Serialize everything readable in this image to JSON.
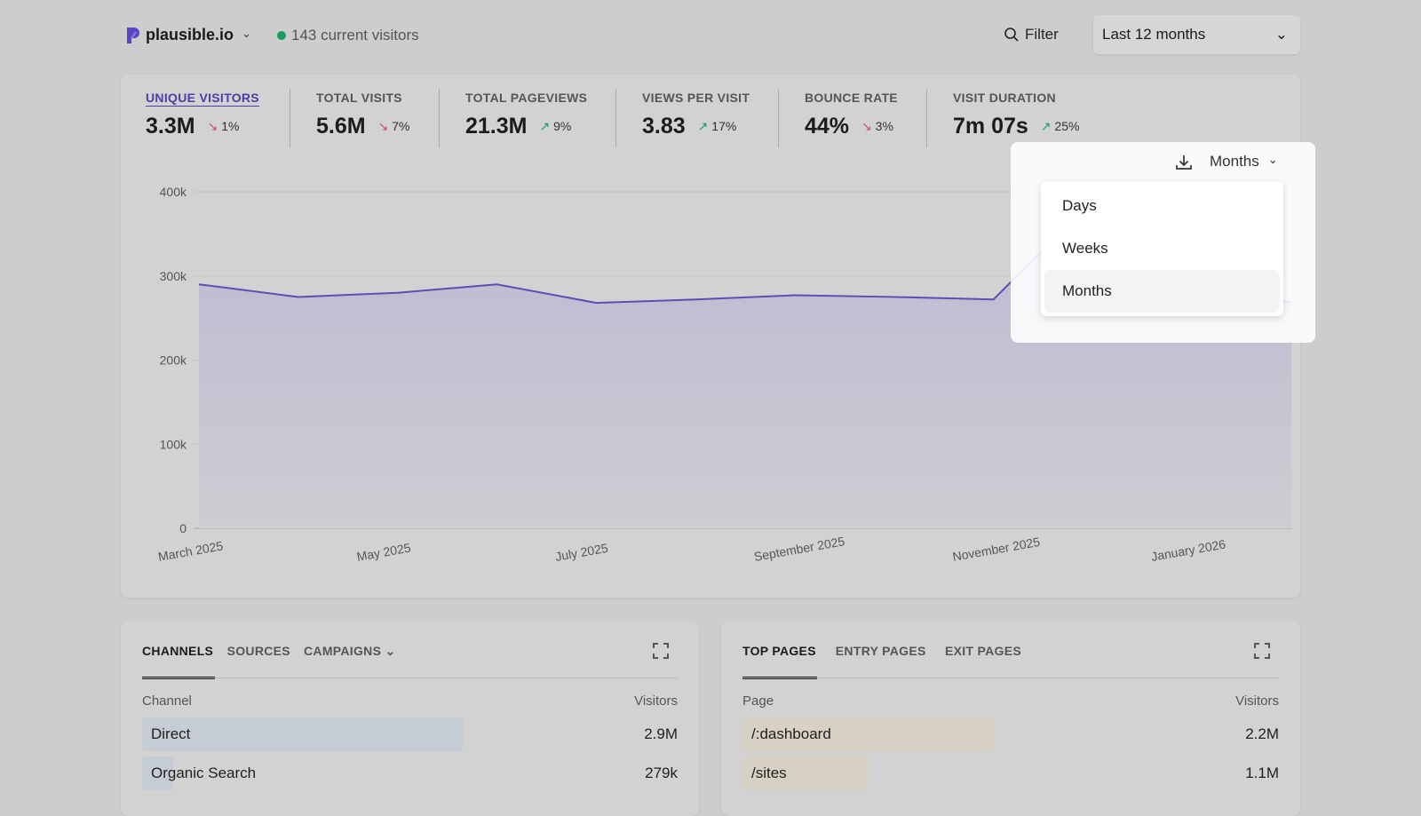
{
  "header": {
    "site": "plausible.io",
    "live_visitors": "143 current visitors",
    "filter_label": "Filter",
    "date_range": "Last 12 months"
  },
  "stats": [
    {
      "label": "UNIQUE VISITORS",
      "value": "3.3M",
      "change": "1%",
      "direction": "down",
      "active": true
    },
    {
      "label": "TOTAL VISITS",
      "value": "5.6M",
      "change": "7%",
      "direction": "down"
    },
    {
      "label": "TOTAL PAGEVIEWS",
      "value": "21.3M",
      "change": "9%",
      "direction": "up"
    },
    {
      "label": "VIEWS PER VISIT",
      "value": "3.83",
      "change": "17%",
      "direction": "up"
    },
    {
      "label": "BOUNCE RATE",
      "value": "44%",
      "change": "3%",
      "direction": "down"
    },
    {
      "label": "VISIT DURATION",
      "value": "7m 07s",
      "change": "25%",
      "direction": "up"
    }
  ],
  "interval": {
    "selected": "Months",
    "options": [
      "Days",
      "Weeks",
      "Months"
    ]
  },
  "chart_data": {
    "type": "area",
    "x": [
      "March 2025",
      "April 2025",
      "May 2025",
      "June 2025",
      "July 2025",
      "August 2025",
      "September 2025",
      "October 2025",
      "November 2025",
      "December 2025",
      "January 2026",
      "February 2026"
    ],
    "xtick_labels": [
      "March 2025",
      "May 2025",
      "July 2025",
      "September 2025",
      "November 2025",
      "January 2026"
    ],
    "values": [
      290000,
      275000,
      280000,
      290000,
      268000,
      272000,
      277000,
      275000,
      272000,
      390000,
      300000,
      268000
    ],
    "yticks": [
      "0",
      "100k",
      "200k",
      "300k",
      "400k"
    ],
    "ylim": [
      0,
      400000
    ],
    "grid": true,
    "color": "#5b4fb6"
  },
  "sources": {
    "tabs": [
      "CHANNELS",
      "SOURCES",
      "CAMPAIGNS"
    ],
    "col_name": "Channel",
    "col_value": "Visitors",
    "rows": [
      {
        "name": "Direct",
        "value": "2.9M",
        "share": 0.92
      },
      {
        "name": "Organic Search",
        "value": "279k",
        "share": 0.09
      }
    ]
  },
  "pages": {
    "tabs": [
      "TOP PAGES",
      "ENTRY PAGES",
      "EXIT PAGES"
    ],
    "col_name": "Page",
    "col_value": "Visitors",
    "rows": [
      {
        "name": "/:dashboard",
        "value": "2.2M",
        "share": 0.72
      },
      {
        "name": "/sites",
        "value": "1.1M",
        "share": 0.36
      }
    ]
  }
}
